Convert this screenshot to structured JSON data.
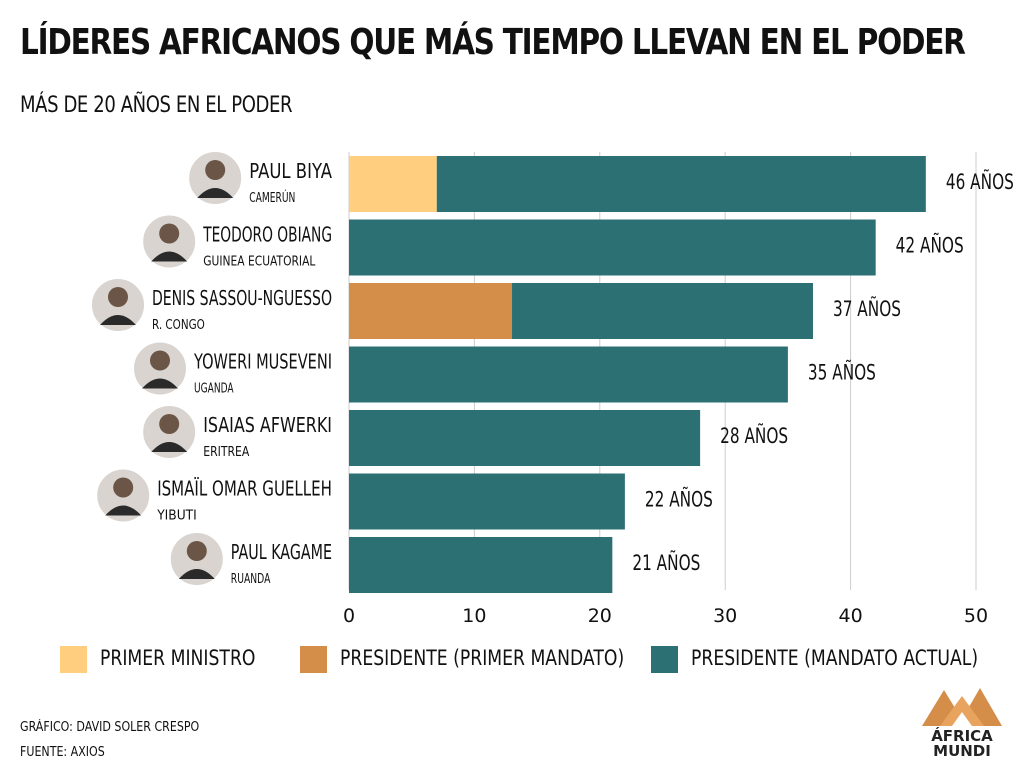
{
  "title": "LÍDERES AFRICANOS QUE MÁS TIEMPO LLEVAN EN EL PODER",
  "subtitle": "MÁS DE 20 AÑOS EN EL PODER",
  "colors": {
    "primer_ministro": "#FFCF7F",
    "presidente_primer_mandato": "#D48E4A",
    "presidente_mandato_actual": "#2C7074",
    "grid": "#cccccc",
    "text": "#111111"
  },
  "chart_data": {
    "type": "bar",
    "orientation": "horizontal",
    "stacked": true,
    "xlim": [
      0,
      50
    ],
    "xticks": [
      0,
      10,
      20,
      30,
      40,
      50
    ],
    "grid": true,
    "legend_position": "bottom",
    "value_suffix": " AÑOS",
    "categories": [
      {
        "name": "PAUL BIYA",
        "country": "CAMERÚN",
        "total_label": "46 AÑOS"
      },
      {
        "name": "TEODORO OBIANG",
        "country": "GUINEA ECUATORIAL",
        "total_label": "42 AÑOS"
      },
      {
        "name": "DENIS SASSOU-NGUESSO",
        "country": "R. CONGO",
        "total_label": "37 AÑOS"
      },
      {
        "name": "YOWERI MUSEVENI",
        "country": "UGANDA",
        "total_label": "35 AÑOS"
      },
      {
        "name": "ISAIAS AFWERKI",
        "country": "ERITREA",
        "total_label": "28 AÑOS"
      },
      {
        "name": "ISMAÏL OMAR GUELLEH",
        "country": "YIBUTI",
        "total_label": "22 AÑOS"
      },
      {
        "name": "PAUL KAGAME",
        "country": "RUANDA",
        "total_label": "21 AÑOS"
      }
    ],
    "series": [
      {
        "name": "PRIMER MINISTRO",
        "color": "#FFCF7F",
        "values": [
          7,
          0,
          0,
          0,
          0,
          0,
          0
        ]
      },
      {
        "name": "PRESIDENTE (PRIMER MANDATO)",
        "color": "#D48E4A",
        "values": [
          0,
          0,
          13,
          0,
          0,
          0,
          0
        ]
      },
      {
        "name": "PRESIDENTE (MANDATO ACTUAL)",
        "color": "#2C7074",
        "values": [
          39,
          42,
          24,
          35,
          28,
          22,
          21
        ]
      }
    ]
  },
  "legend": [
    {
      "label": "PRIMER MINISTRO",
      "color": "#FFCF7F"
    },
    {
      "label": "PRESIDENTE (PRIMER MANDATO)",
      "color": "#D48E4A"
    },
    {
      "label": "PRESIDENTE (MANDATO ACTUAL)",
      "color": "#2C7074"
    }
  ],
  "credits": {
    "graphic": "GRÁFICO: DAVID SOLER CRESPO",
    "source": "FUENTE: AXIOS"
  },
  "logo": {
    "line1": "ÁFRICA",
    "line2": "MUNDI"
  }
}
